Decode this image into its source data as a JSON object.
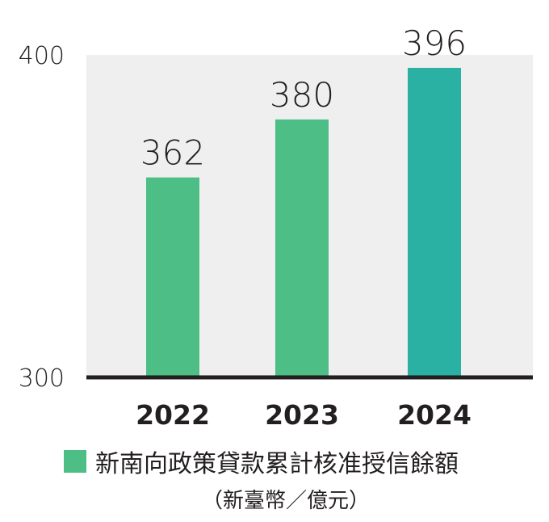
{
  "chart_data": {
    "type": "bar",
    "categories": [
      "2022",
      "2023",
      "2024"
    ],
    "series": [
      {
        "name": "新南向政策貸款累計核准授信餘額",
        "values": [
          362,
          380,
          396
        ]
      }
    ],
    "ylim": [
      300,
      400
    ],
    "yticks": [
      "300",
      "400"
    ],
    "data_labels": [
      "362",
      "380",
      "396"
    ],
    "unit": "（新臺幣／億元）",
    "title": "",
    "xlabel": "",
    "ylabel": "",
    "grid": false,
    "legend_position": "bottom",
    "colors": {
      "bar": "#4dbe85",
      "bar_highlight": "#2ab1a4",
      "plot_background": "#efefef",
      "axis": "#231f20",
      "text": "#231f20"
    }
  }
}
